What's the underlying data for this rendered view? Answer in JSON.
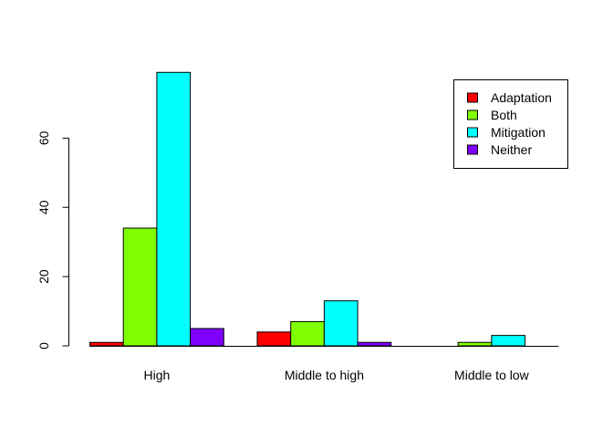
{
  "chart_data": {
    "type": "bar",
    "categories": [
      "High",
      "Middle to high",
      "Middle to low"
    ],
    "series": [
      {
        "name": "Adaptation",
        "color": "#FF0000",
        "values": [
          1,
          4,
          0
        ]
      },
      {
        "name": "Both",
        "color": "#80FF00",
        "values": [
          34,
          7,
          1
        ]
      },
      {
        "name": "Mitigation",
        "color": "#00FFFF",
        "values": [
          79,
          13,
          3
        ]
      },
      {
        "name": "Neither",
        "color": "#8000FF",
        "values": [
          5,
          1,
          0
        ]
      }
    ],
    "y_ticks": [
      "0",
      "20",
      "40",
      "60"
    ],
    "ylim": [
      0,
      80
    ],
    "grid": false,
    "legend_position": "top-right"
  }
}
